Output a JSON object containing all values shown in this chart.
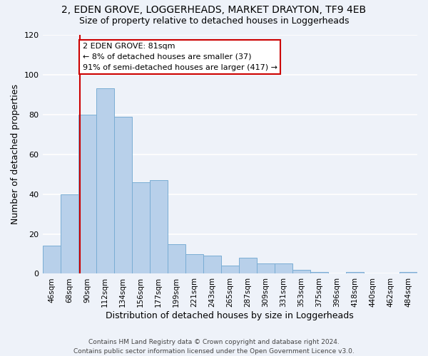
{
  "title_line1": "2, EDEN GROVE, LOGGERHEADS, MARKET DRAYTON, TF9 4EB",
  "title_line2": "Size of property relative to detached houses in Loggerheads",
  "xlabel": "Distribution of detached houses by size in Loggerheads",
  "ylabel": "Number of detached properties",
  "bin_labels": [
    "46sqm",
    "68sqm",
    "90sqm",
    "112sqm",
    "134sqm",
    "156sqm",
    "177sqm",
    "199sqm",
    "221sqm",
    "243sqm",
    "265sqm",
    "287sqm",
    "309sqm",
    "331sqm",
    "353sqm",
    "375sqm",
    "396sqm",
    "418sqm",
    "440sqm",
    "462sqm",
    "484sqm"
  ],
  "bar_heights": [
    14,
    40,
    80,
    93,
    79,
    46,
    47,
    15,
    10,
    9,
    4,
    8,
    5,
    5,
    2,
    1,
    0,
    1,
    0,
    0,
    1
  ],
  "bar_color": "#b8d0ea",
  "bar_edge_color": "#7aadd4",
  "vline_color": "#cc0000",
  "annotation_title": "2 EDEN GROVE: 81sqm",
  "annotation_line1": "← 8% of detached houses are smaller (37)",
  "annotation_line2": "91% of semi-detached houses are larger (417) →",
  "annotation_box_color": "#ffffff",
  "annotation_box_edge_color": "#cc0000",
  "ylim": [
    0,
    120
  ],
  "yticks": [
    0,
    20,
    40,
    60,
    80,
    100,
    120
  ],
  "footer_line1": "Contains HM Land Registry data © Crown copyright and database right 2024.",
  "footer_line2": "Contains public sector information licensed under the Open Government Licence v3.0.",
  "background_color": "#eef2f9",
  "grid_color": "#ffffff",
  "title_fontsize": 10,
  "subtitle_fontsize": 9,
  "axis_label_fontsize": 9,
  "tick_fontsize": 7.5,
  "footer_fontsize": 6.5,
  "annotation_fontsize": 8
}
